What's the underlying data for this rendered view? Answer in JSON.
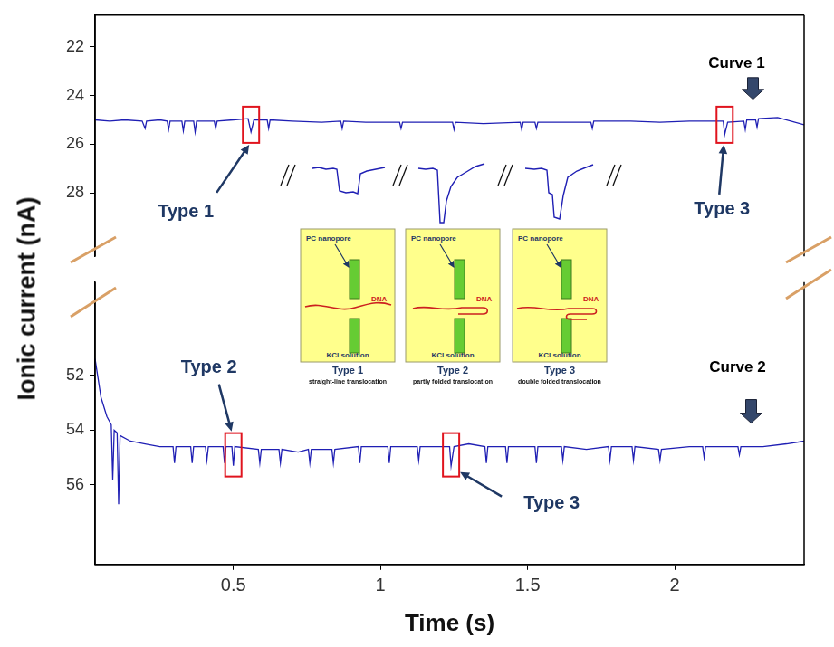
{
  "chart_data": [
    {
      "type": "line",
      "y_label": "Ionic current (nA)",
      "x": [
        0.03,
        0.08,
        0.13,
        0.19,
        0.2,
        0.205,
        0.25,
        0.275,
        0.28,
        0.285,
        0.325,
        0.33,
        0.335,
        0.365,
        0.37,
        0.375,
        0.435,
        0.44,
        0.445,
        0.5,
        0.55,
        0.56,
        0.57,
        0.615,
        0.62,
        0.625,
        0.7,
        0.8,
        0.865,
        0.87,
        0.875,
        0.95,
        1.065,
        1.07,
        1.075,
        1.15,
        1.245,
        1.25,
        1.255,
        1.35,
        1.475,
        1.48,
        1.485,
        1.525,
        1.53,
        1.535,
        1.6,
        1.715,
        1.72,
        1.725,
        1.85,
        1.95,
        2.05,
        2.165,
        2.17,
        2.18,
        2.235,
        2.24,
        2.245,
        2.275,
        2.28,
        2.285,
        2.35,
        2.44
      ],
      "series": [
        {
          "name": "Curve 1",
          "color": "#1f1fb4",
          "line_style": "solid",
          "marker": "none",
          "values": [
            25.0,
            25.05,
            25.0,
            25.05,
            25.35,
            25.05,
            25.0,
            25.05,
            25.4,
            25.05,
            25.05,
            25.45,
            25.05,
            25.05,
            25.5,
            25.05,
            25.05,
            25.35,
            25.05,
            25.0,
            24.95,
            25.5,
            25.0,
            25.0,
            25.35,
            25.0,
            25.05,
            25.1,
            25.05,
            25.35,
            25.05,
            25.1,
            25.1,
            25.35,
            25.1,
            25.1,
            25.1,
            25.4,
            25.1,
            25.15,
            25.1,
            25.4,
            25.1,
            25.1,
            25.35,
            25.1,
            25.1,
            25.1,
            25.35,
            25.05,
            25.05,
            25.1,
            25.05,
            25.05,
            25.6,
            25.1,
            25.05,
            25.4,
            25.0,
            25.0,
            25.3,
            24.95,
            24.9,
            25.2
          ]
        }
      ],
      "xlim": [
        0.03,
        2.44
      ],
      "ylim": [
        20.7,
        30.6
      ],
      "yticks": [
        22,
        24,
        26,
        28
      ],
      "grid": false,
      "tick_labels": "y",
      "curve_label": {
        "text": "Curve 1",
        "x": 2.3,
        "y": 24.9
      },
      "annotations": [
        {
          "text": "Type 1",
          "x": 0.56,
          "y": 25.2
        },
        {
          "text": "Type 3",
          "x": 2.17,
          "y": 25.2
        }
      ]
    },
    {
      "type": "line",
      "x_label": "Time (s)",
      "x": [
        0.03,
        0.05,
        0.07,
        0.085,
        0.09,
        0.095,
        0.105,
        0.11,
        0.115,
        0.15,
        0.2,
        0.25,
        0.295,
        0.3,
        0.305,
        0.355,
        0.36,
        0.365,
        0.405,
        0.41,
        0.415,
        0.465,
        0.47,
        0.475,
        0.495,
        0.5,
        0.505,
        0.585,
        0.59,
        0.595,
        0.655,
        0.66,
        0.665,
        0.72,
        0.755,
        0.76,
        0.765,
        0.835,
        0.84,
        0.845,
        0.925,
        0.93,
        0.935,
        1.025,
        1.03,
        1.035,
        1.125,
        1.13,
        1.135,
        1.235,
        1.24,
        1.25,
        1.3,
        1.355,
        1.36,
        1.365,
        1.425,
        1.43,
        1.435,
        1.525,
        1.53,
        1.535,
        1.615,
        1.62,
        1.625,
        1.7,
        1.775,
        1.78,
        1.785,
        1.855,
        1.86,
        1.865,
        1.945,
        1.95,
        1.955,
        2.05,
        2.095,
        2.1,
        2.105,
        2.215,
        2.22,
        2.225,
        2.3,
        2.38,
        2.44
      ],
      "series": [
        {
          "name": "Curve 2",
          "color": "#1f1fb4",
          "line_style": "solid",
          "marker": "none",
          "values": [
            51.4,
            52.8,
            53.5,
            53.8,
            55.8,
            54.0,
            54.1,
            56.7,
            54.2,
            54.4,
            54.5,
            54.6,
            54.6,
            55.2,
            54.6,
            54.6,
            55.2,
            54.6,
            54.6,
            55.1,
            54.6,
            54.6,
            55.2,
            54.6,
            54.6,
            55.3,
            54.6,
            54.7,
            55.2,
            54.7,
            54.7,
            55.2,
            54.7,
            54.8,
            54.7,
            55.2,
            54.7,
            54.7,
            55.2,
            54.7,
            54.6,
            55.2,
            54.6,
            54.6,
            55.2,
            54.6,
            54.6,
            55.1,
            54.6,
            54.6,
            55.3,
            54.6,
            54.5,
            54.6,
            55.2,
            54.6,
            54.6,
            55.2,
            54.6,
            54.6,
            55.2,
            54.6,
            54.6,
            55.1,
            54.6,
            54.7,
            54.6,
            55.1,
            54.6,
            54.6,
            55.1,
            54.6,
            54.7,
            55.1,
            54.7,
            54.6,
            54.6,
            55.0,
            54.6,
            54.6,
            54.9,
            54.6,
            54.6,
            54.5,
            54.4
          ]
        }
      ],
      "xlim": [
        0.03,
        2.44
      ],
      "xticks": [
        0.5,
        1,
        1.5,
        2
      ],
      "ylim": [
        48.6,
        58.9
      ],
      "yticks": [
        52,
        54,
        56
      ],
      "grid": false,
      "curve_label": {
        "text": "Curve 2",
        "x": 2.3,
        "y": 54.6
      },
      "annotations": [
        {
          "text": "Type 2",
          "x": 0.5,
          "y": 54.9
        },
        {
          "text": "Type 3",
          "x": 1.24,
          "y": 54.9
        }
      ]
    }
  ],
  "inset": {
    "panels": [
      {
        "title": "Type 1",
        "caption": "straight-line translocation",
        "pore_label": "PC nanopore",
        "molecule_label": "DNA",
        "solution_label": "KCl solution"
      },
      {
        "title": "Type 2",
        "caption": "partly folded translocation",
        "pore_label": "PC nanopore",
        "molecule_label": "DNA",
        "solution_label": "KCl solution"
      },
      {
        "title": "Type 3",
        "caption": "double folded translocation",
        "pore_label": "PC nanopore",
        "molecule_label": "DNA",
        "solution_label": "KCl solution"
      }
    ]
  }
}
